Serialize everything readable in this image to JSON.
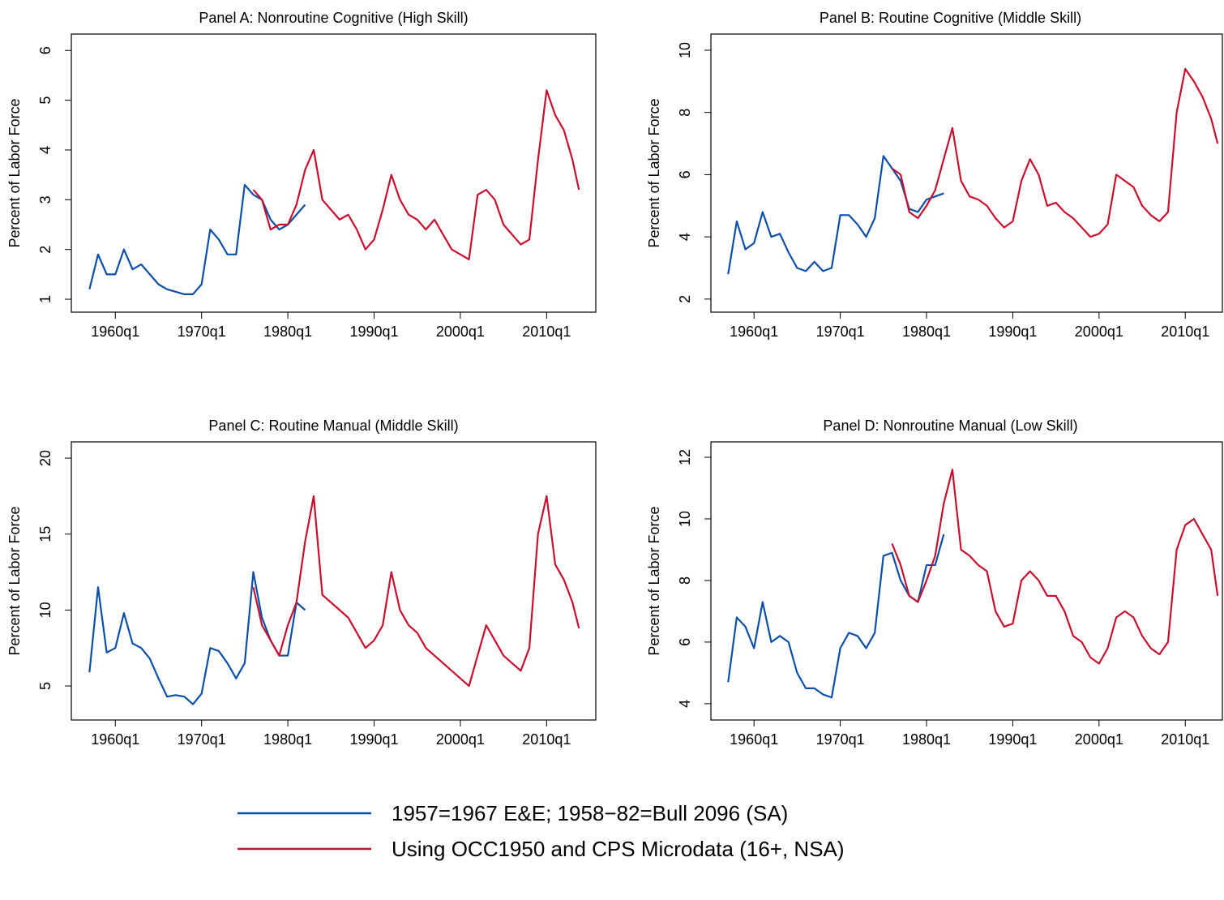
{
  "chart_data": [
    {
      "type": "line",
      "title": "Panel A: Nonroutine Cognitive (High Skill)",
      "ylabel": "Percent of Labor Force",
      "xlim": [
        1954.9,
        2015.7
      ],
      "ylim": [
        0.74,
        6.33
      ],
      "xticks": [
        {
          "value": 1960,
          "label": "1960q1"
        },
        {
          "value": 1970,
          "label": "1970q1"
        },
        {
          "value": 1980,
          "label": "1980q1"
        },
        {
          "value": 1990,
          "label": "1990q1"
        },
        {
          "value": 2000,
          "label": "2000q1"
        },
        {
          "value": 2010,
          "label": "2010q1"
        }
      ],
      "yticks": [
        1,
        2,
        3,
        4,
        5,
        6
      ],
      "series": [
        {
          "color": "#0b4fa8",
          "x": [
            1957,
            1958,
            1959,
            1960,
            1961,
            1962,
            1963,
            1964,
            1965,
            1966,
            1967,
            1968,
            1969,
            1970,
            1971,
            1972,
            1973,
            1974,
            1975,
            1976,
            1977,
            1978,
            1979,
            1980,
            1981,
            1982
          ],
          "values": [
            1.2,
            1.9,
            1.5,
            1.5,
            2.0,
            1.6,
            1.7,
            1.5,
            1.3,
            1.2,
            1.15,
            1.1,
            1.1,
            1.3,
            2.4,
            2.2,
            1.9,
            1.9,
            3.3,
            3.1,
            3.0,
            2.6,
            2.4,
            2.5,
            2.7,
            2.9
          ]
        },
        {
          "color": "#c8102e",
          "x": [
            1976,
            1977,
            1978,
            1979,
            1980,
            1981,
            1982,
            1983,
            1984,
            1985,
            1986,
            1987,
            1988,
            1989,
            1990,
            1991,
            1992,
            1993,
            1994,
            1995,
            1996,
            1997,
            1998,
            1999,
            2000,
            2001,
            2002,
            2003,
            2004,
            2005,
            2006,
            2007,
            2008,
            2009,
            2010,
            2011,
            2012,
            2013,
            2013.75
          ],
          "values": [
            3.2,
            3.0,
            2.4,
            2.5,
            2.5,
            2.9,
            3.6,
            4.0,
            3.0,
            2.8,
            2.6,
            2.7,
            2.4,
            2.0,
            2.2,
            2.8,
            3.5,
            3.0,
            2.7,
            2.6,
            2.4,
            2.6,
            2.3,
            2.0,
            1.9,
            1.8,
            3.1,
            3.2,
            3.0,
            2.5,
            2.3,
            2.1,
            2.2,
            3.8,
            5.2,
            4.7,
            4.4,
            3.8,
            3.2
          ]
        }
      ]
    },
    {
      "type": "line",
      "title": "Panel B: Routine Cognitive (Middle Skill)",
      "ylabel": "Percent of Labor Force",
      "xlim": [
        1955.0,
        2014.3
      ],
      "ylim": [
        1.58,
        10.52
      ],
      "xticks": [
        {
          "value": 1960,
          "label": "1960q1"
        },
        {
          "value": 1970,
          "label": "1970q1"
        },
        {
          "value": 1980,
          "label": "1980q1"
        },
        {
          "value": 1990,
          "label": "1990q1"
        },
        {
          "value": 2000,
          "label": "2000q1"
        },
        {
          "value": 2010,
          "label": "2010q1"
        }
      ],
      "yticks": [
        2,
        4,
        6,
        8,
        10
      ],
      "series": [
        {
          "color": "#0b4fa8",
          "x": [
            1957,
            1958,
            1959,
            1960,
            1961,
            1962,
            1963,
            1964,
            1965,
            1966,
            1967,
            1968,
            1969,
            1970,
            1971,
            1972,
            1973,
            1974,
            1975,
            1976,
            1977,
            1978,
            1979,
            1980,
            1981,
            1982
          ],
          "values": [
            2.8,
            4.5,
            3.6,
            3.8,
            4.8,
            4.0,
            4.1,
            3.5,
            3.0,
            2.9,
            3.2,
            2.9,
            3.0,
            4.7,
            4.7,
            4.4,
            4.0,
            4.6,
            6.6,
            6.2,
            5.8,
            4.9,
            4.8,
            5.2,
            5.3,
            5.4
          ]
        },
        {
          "color": "#c8102e",
          "x": [
            1976,
            1977,
            1978,
            1979,
            1980,
            1981,
            1982,
            1983,
            1984,
            1985,
            1986,
            1987,
            1988,
            1989,
            1990,
            1991,
            1992,
            1993,
            1994,
            1995,
            1996,
            1997,
            1998,
            1999,
            2000,
            2001,
            2002,
            2003,
            2004,
            2005,
            2006,
            2007,
            2008,
            2009,
            2010,
            2011,
            2012,
            2013,
            2013.75
          ],
          "values": [
            6.2,
            6.0,
            4.8,
            4.6,
            5.0,
            5.5,
            6.5,
            7.5,
            5.8,
            5.3,
            5.2,
            5.0,
            4.6,
            4.3,
            4.5,
            5.8,
            6.5,
            6.0,
            5.0,
            5.1,
            4.8,
            4.6,
            4.3,
            4.0,
            4.1,
            4.4,
            6.0,
            5.8,
            5.6,
            5.0,
            4.7,
            4.5,
            4.8,
            8.0,
            9.4,
            9.0,
            8.5,
            7.8,
            7.0
          ]
        }
      ]
    },
    {
      "type": "line",
      "title": "Panel C: Routine Manual (Middle Skill)",
      "ylabel": "Percent of Labor Force",
      "xlim": [
        1954.9,
        2015.7
      ],
      "ylim": [
        2.76,
        21.07
      ],
      "xticks": [
        {
          "value": 1960,
          "label": "1960q1"
        },
        {
          "value": 1970,
          "label": "1970q1"
        },
        {
          "value": 1980,
          "label": "1980q1"
        },
        {
          "value": 1990,
          "label": "1990q1"
        },
        {
          "value": 2000,
          "label": "2000q1"
        },
        {
          "value": 2010,
          "label": "2010q1"
        }
      ],
      "yticks": [
        5,
        10,
        15,
        20
      ],
      "series": [
        {
          "color": "#0b4fa8",
          "x": [
            1957,
            1958,
            1959,
            1960,
            1961,
            1962,
            1963,
            1964,
            1965,
            1966,
            1967,
            1968,
            1969,
            1970,
            1971,
            1972,
            1973,
            1974,
            1975,
            1976,
            1977,
            1978,
            1979,
            1980,
            1981,
            1982
          ],
          "values": [
            5.9,
            11.5,
            7.2,
            7.5,
            9.8,
            7.8,
            7.5,
            6.8,
            5.5,
            4.3,
            4.4,
            4.3,
            3.8,
            4.5,
            7.5,
            7.3,
            6.5,
            5.5,
            6.5,
            12.5,
            9.5,
            8.0,
            7.0,
            7.0,
            10.5,
            10.0
          ]
        },
        {
          "color": "#c8102e",
          "x": [
            1976,
            1977,
            1978,
            1979,
            1980,
            1981,
            1982,
            1983,
            1984,
            1985,
            1986,
            1987,
            1988,
            1989,
            1990,
            1991,
            1992,
            1993,
            1994,
            1995,
            1996,
            1997,
            1998,
            1999,
            2000,
            2001,
            2002,
            2003,
            2004,
            2005,
            2006,
            2007,
            2008,
            2009,
            2010,
            2011,
            2012,
            2013,
            2013.75
          ],
          "values": [
            11.5,
            9.0,
            8.0,
            7.0,
            9.0,
            10.5,
            14.5,
            17.5,
            11.0,
            10.5,
            10.0,
            9.5,
            8.5,
            7.5,
            8.0,
            9.0,
            12.5,
            10.0,
            9.0,
            8.5,
            7.5,
            7.0,
            6.5,
            6.0,
            5.5,
            5.0,
            7.0,
            9.0,
            8.0,
            7.0,
            6.5,
            6.0,
            7.5,
            15.0,
            17.5,
            13.0,
            12.0,
            10.5,
            8.8
          ]
        }
      ]
    },
    {
      "type": "line",
      "title": "Panel D: Nonroutine Manual (Low Skill)",
      "ylabel": "Percent of Labor Force",
      "xlim": [
        1955.0,
        2014.3
      ],
      "ylim": [
        3.47,
        12.5
      ],
      "xticks": [
        {
          "value": 1960,
          "label": "1960q1"
        },
        {
          "value": 1970,
          "label": "1970q1"
        },
        {
          "value": 1980,
          "label": "1980q1"
        },
        {
          "value": 1990,
          "label": "1990q1"
        },
        {
          "value": 2000,
          "label": "2000q1"
        },
        {
          "value": 2010,
          "label": "2010q1"
        }
      ],
      "yticks": [
        4,
        6,
        8,
        10,
        12
      ],
      "series": [
        {
          "color": "#0b4fa8",
          "x": [
            1957,
            1958,
            1959,
            1960,
            1961,
            1962,
            1963,
            1964,
            1965,
            1966,
            1967,
            1968,
            1969,
            1970,
            1971,
            1972,
            1973,
            1974,
            1975,
            1976,
            1977,
            1978,
            1979,
            1980,
            1981,
            1982
          ],
          "values": [
            4.7,
            6.8,
            6.5,
            5.8,
            7.3,
            6.0,
            6.2,
            6.0,
            5.0,
            4.5,
            4.5,
            4.3,
            4.2,
            5.8,
            6.3,
            6.2,
            5.8,
            6.3,
            8.8,
            8.9,
            8.0,
            7.5,
            7.3,
            8.5,
            8.5,
            9.5
          ]
        },
        {
          "color": "#c8102e",
          "x": [
            1976,
            1977,
            1978,
            1979,
            1980,
            1981,
            1982,
            1983,
            1984,
            1985,
            1986,
            1987,
            1988,
            1989,
            1990,
            1991,
            1992,
            1993,
            1994,
            1995,
            1996,
            1997,
            1998,
            1999,
            2000,
            2001,
            2002,
            2003,
            2004,
            2005,
            2006,
            2007,
            2008,
            2009,
            2010,
            2011,
            2012,
            2013,
            2013.75
          ],
          "values": [
            9.2,
            8.5,
            7.5,
            7.3,
            8.0,
            8.8,
            10.5,
            11.6,
            9.0,
            8.8,
            8.5,
            8.3,
            7.0,
            6.5,
            6.6,
            8.0,
            8.3,
            8.0,
            7.5,
            7.5,
            7.0,
            6.2,
            6.0,
            5.5,
            5.3,
            5.8,
            6.8,
            7.0,
            6.8,
            6.2,
            5.8,
            5.6,
            6.0,
            9.0,
            9.8,
            10.0,
            9.5,
            9.0,
            7.5
          ]
        }
      ]
    }
  ],
  "legend": {
    "entries": [
      {
        "name": "1957=1967 E&E; 1958−82=Bull 2096 (SA)",
        "color": "#0b4fa8"
      },
      {
        "name": "Using OCC1950 and CPS Microdata (16+, NSA)",
        "color": "#c8102e"
      }
    ]
  }
}
